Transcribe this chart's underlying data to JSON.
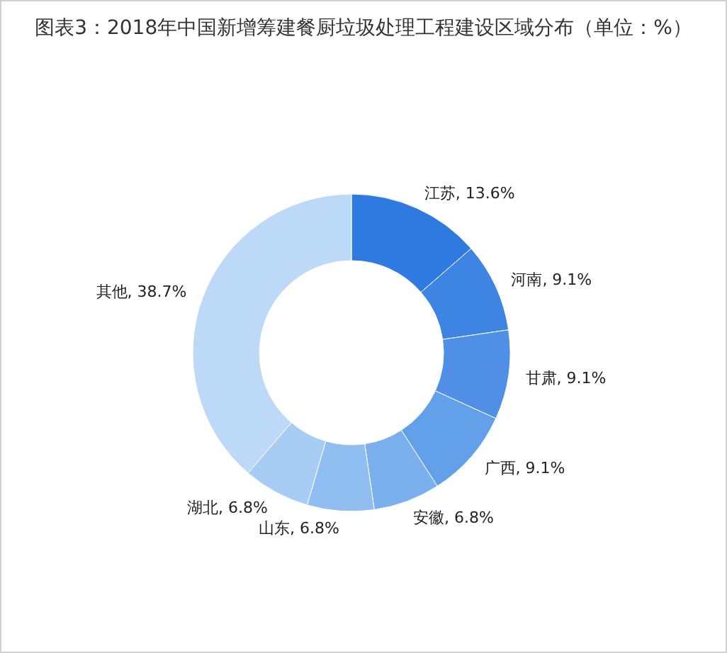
{
  "chart_data": {
    "type": "donut",
    "title": "图表3：2018年中国新增筹建餐厨垃圾处理工程建设区域分布（单位：%）",
    "categories": [
      "江苏",
      "河南",
      "甘肃",
      "广西",
      "安徽",
      "山东",
      "湖北",
      "其他"
    ],
    "values": [
      13.6,
      9.1,
      9.1,
      9.1,
      6.8,
      6.8,
      6.8,
      38.7
    ],
    "value_labels": [
      "13.6%",
      "9.1%",
      "9.1%",
      "9.1%",
      "6.8%",
      "6.8%",
      "6.8%",
      "38.7%"
    ],
    "colors": [
      "#2f7ae0",
      "#3d84e3",
      "#4f90e6",
      "#63a0ea",
      "#7ab0ee",
      "#90bef1",
      "#a7cdf4",
      "#bcd9f7"
    ]
  }
}
